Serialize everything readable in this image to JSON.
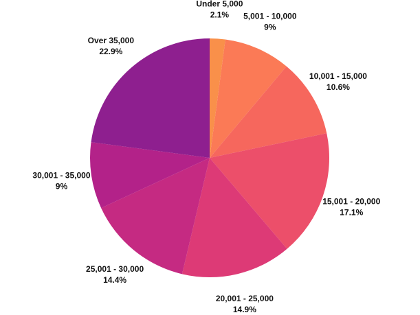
{
  "chart_data": {
    "type": "pie",
    "categories": [
      "Under 5,000",
      "5,001 - 10,000",
      "10,001 - 15,000",
      "15,001 - 20,000",
      "20,001 - 25,000",
      "25,001 - 30,000",
      "30,001 - 35,000",
      "Over 35,000"
    ],
    "values": [
      2.1,
      9,
      10.6,
      17.1,
      14.9,
      14.4,
      9,
      22.9
    ],
    "value_labels": [
      "2.1%",
      "9%",
      "10.6%",
      "17.1%",
      "14.9%",
      "14.4%",
      "9%",
      "22.9%"
    ],
    "colors": [
      "#f9904a",
      "#fb7a56",
      "#f6675d",
      "#ec4f6a",
      "#dd3a76",
      "#c52a82",
      "#b32289",
      "#8e1f8f"
    ],
    "title": "",
    "legend": "none",
    "start_angle": "12 o'clock",
    "direction": "clockwise"
  }
}
